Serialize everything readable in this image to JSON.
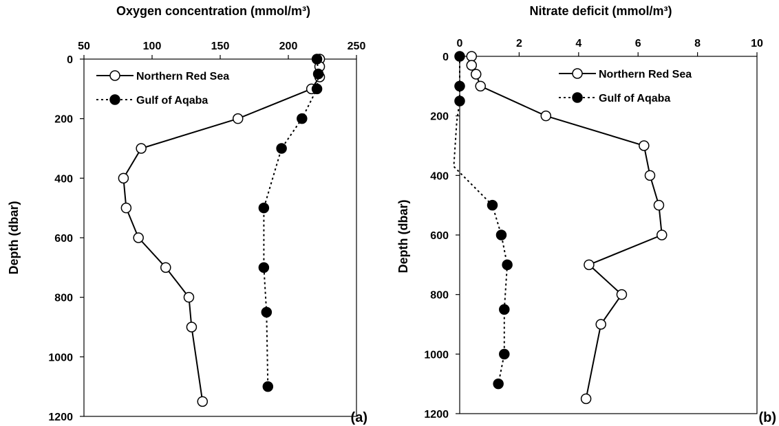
{
  "chart_data": [
    {
      "type": "line",
      "panel_label": "(a)",
      "xlabel": "Oxygen concentration (mmol/m³)",
      "ylabel": "Depth (dbar)",
      "xlim": [
        50,
        250
      ],
      "ylim": [
        0,
        1200
      ],
      "y_inverted": true,
      "x_axis_position": "top",
      "x_ticks": [
        50,
        100,
        150,
        200,
        250
      ],
      "y_ticks": [
        0,
        200,
        400,
        600,
        800,
        1000,
        1200
      ],
      "grid": false,
      "legend_position": "top-left",
      "series": [
        {
          "name": "Northern Red Sea",
          "line_style": "solid",
          "marker": "open-circle",
          "points": [
            {
              "x": 223,
              "y": 0
            },
            {
              "x": 223,
              "y": 25
            },
            {
              "x": 223,
              "y": 60
            },
            {
              "x": 217,
              "y": 100
            },
            {
              "x": 163,
              "y": 200
            },
            {
              "x": 92,
              "y": 300
            },
            {
              "x": 79,
              "y": 400
            },
            {
              "x": 81,
              "y": 500
            },
            {
              "x": 90,
              "y": 600
            },
            {
              "x": 110,
              "y": 700
            },
            {
              "x": 127,
              "y": 800
            },
            {
              "x": 129,
              "y": 900
            },
            {
              "x": 137,
              "y": 1150
            }
          ]
        },
        {
          "name": "Gulf of Aqaba",
          "line_style": "dotted",
          "marker": "filled-circle",
          "points": [
            {
              "x": 221,
              "y": 0
            },
            {
              "x": 222,
              "y": 50
            },
            {
              "x": 221,
              "y": 100
            },
            {
              "x": 210,
              "y": 200
            },
            {
              "x": 195,
              "y": 300
            },
            {
              "x": 182,
              "y": 500
            },
            {
              "x": 182,
              "y": 700
            },
            {
              "x": 184,
              "y": 850
            },
            {
              "x": 185,
              "y": 1100
            }
          ]
        }
      ]
    },
    {
      "type": "line",
      "panel_label": "(b)",
      "xlabel": "Nitrate deficit (mmol/m³)",
      "ylabel": "Depth (dbar)",
      "xlim": [
        0,
        10
      ],
      "ylim": [
        0,
        1200
      ],
      "y_inverted": true,
      "x_axis_position": "top",
      "x_ticks": [
        0,
        2,
        4,
        6,
        8,
        10
      ],
      "y_ticks": [
        0,
        200,
        400,
        600,
        800,
        1000,
        1200
      ],
      "grid": false,
      "legend_position": "top-right",
      "series": [
        {
          "name": "Northern Red Sea",
          "line_style": "solid",
          "marker": "open-circle",
          "points": [
            {
              "x": 0.4,
              "y": 0
            },
            {
              "x": 0.4,
              "y": 30
            },
            {
              "x": 0.55,
              "y": 60
            },
            {
              "x": 0.7,
              "y": 100
            },
            {
              "x": 2.9,
              "y": 200
            },
            {
              "x": 6.2,
              "y": 300
            },
            {
              "x": 6.4,
              "y": 400
            },
            {
              "x": 6.7,
              "y": 500
            },
            {
              "x": 6.8,
              "y": 600
            },
            {
              "x": 4.35,
              "y": 700
            },
            {
              "x": 5.45,
              "y": 800
            },
            {
              "x": 4.75,
              "y": 900
            },
            {
              "x": 4.25,
              "y": 1150
            }
          ]
        },
        {
          "name": "Gulf of Aqaba",
          "line_style": "dotted",
          "marker": "filled-circle",
          "points": [
            {
              "x": 0,
              "y": 0
            },
            {
              "x": 0,
              "y": 100
            },
            {
              "x": 0,
              "y": 150
            },
            {
              "x": -0.1,
              "y": 220,
              "marker": false
            },
            {
              "x": -0.2,
              "y": 370,
              "marker": false
            },
            {
              "x": 1.1,
              "y": 500
            },
            {
              "x": 1.4,
              "y": 600
            },
            {
              "x": 1.6,
              "y": 700
            },
            {
              "x": 1.5,
              "y": 850
            },
            {
              "x": 1.5,
              "y": 1000
            },
            {
              "x": 1.3,
              "y": 1100
            }
          ]
        }
      ]
    }
  ]
}
